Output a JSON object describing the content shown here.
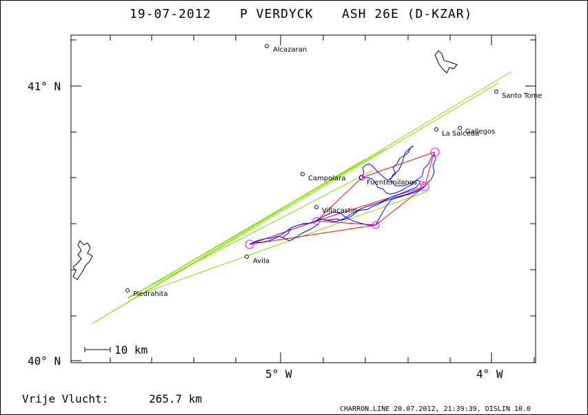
{
  "header": {
    "date": "19-07-2012",
    "pilot": "P VERDYCK",
    "glider": "ASH 26E (D-KZAR)"
  },
  "axes": {
    "y_labels": [
      "41° N",
      "40° N"
    ],
    "x_labels": [
      "5° W",
      "4° W"
    ]
  },
  "scale_bar": {
    "label": "10 km"
  },
  "places": [
    {
      "name": "Alcazaran"
    },
    {
      "name": "Santo Tome"
    },
    {
      "name": "La Salceda"
    },
    {
      "name": "Gallegos"
    },
    {
      "name": "Campolara"
    },
    {
      "name": "Fuentemilanos"
    },
    {
      "name": "Villacastin"
    },
    {
      "name": "Avila"
    },
    {
      "name": "Piedrahita"
    }
  ],
  "footer": {
    "distance_label": "Vrije Vlucht:",
    "distance_value": "265.7 km",
    "credit": "CHARRON.LINE 20.07.2012, 21:39:39, DISLIN 10.0"
  },
  "colors": {
    "track": "#0000ff",
    "task": "#ff0000",
    "turnpoint": "#ff00ff",
    "glide": "#80e000",
    "axis": "#000000"
  }
}
